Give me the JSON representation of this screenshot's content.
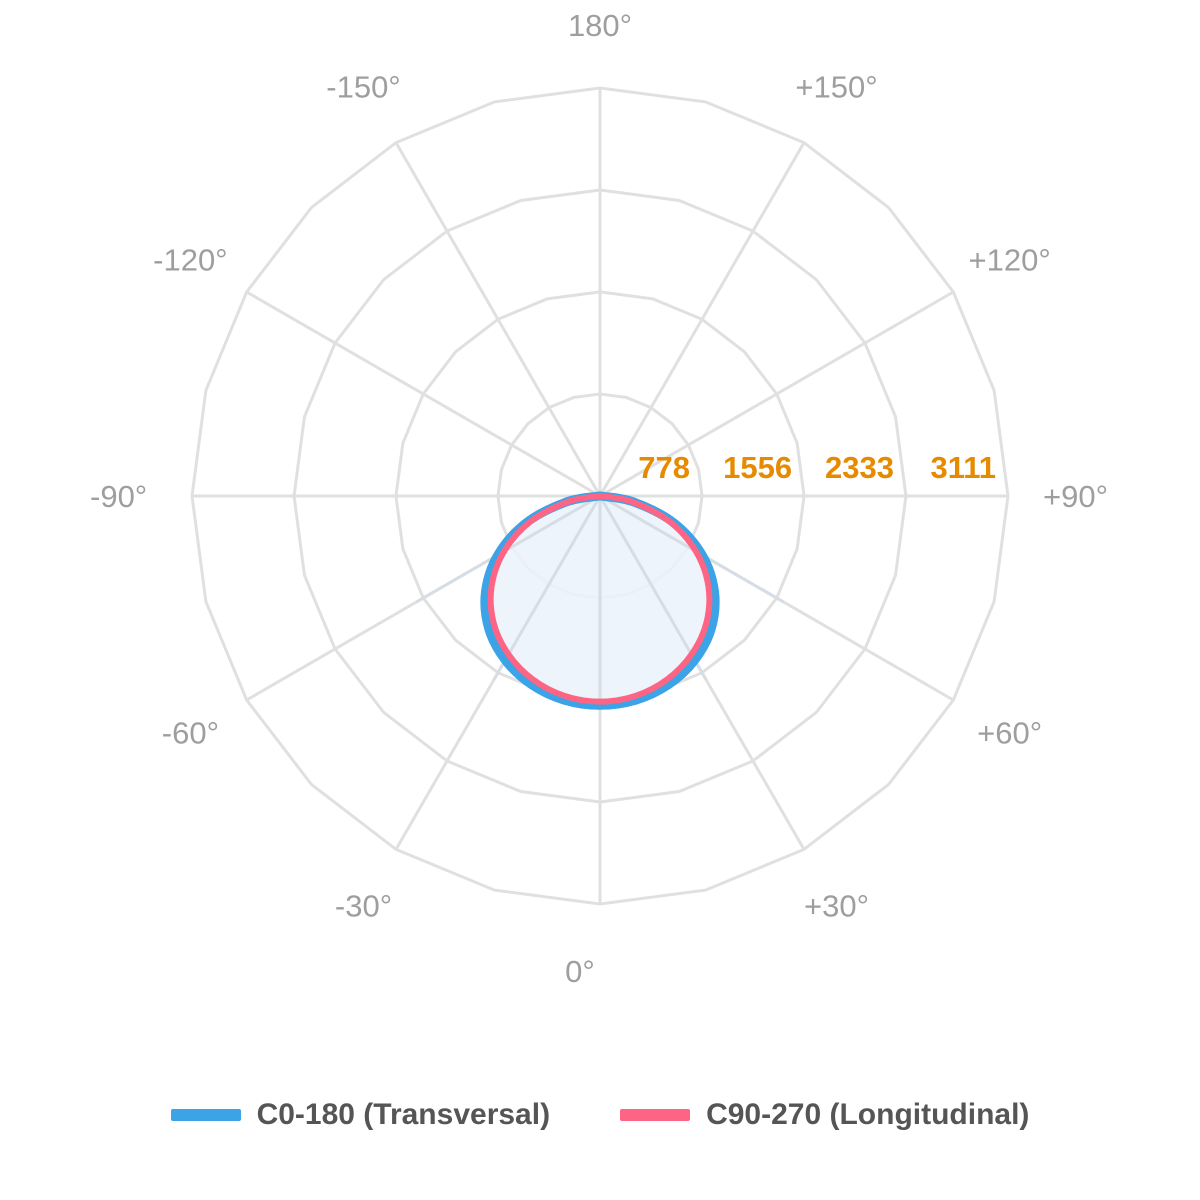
{
  "chart_data": {
    "type": "polar-line",
    "angle_labels": [
      "0°",
      "+30°",
      "+60°",
      "+90°",
      "+120°",
      "+150°",
      "180°",
      "-150°",
      "-120°",
      "-90°",
      "-60°",
      "-30°"
    ],
    "radial_ticks": [
      778,
      1556,
      2333,
      3111
    ],
    "radial_tick_labels": [
      "778",
      "1556",
      "2333",
      "3111"
    ],
    "r_max": 3111,
    "grid": true,
    "legend_position": "bottom",
    "angles_deg": [
      0,
      10,
      20,
      30,
      40,
      50,
      60,
      70,
      80,
      90
    ],
    "series": [
      {
        "name": "C0-180 (Transversal)",
        "color": "#3ba3e6",
        "values": [
          1596,
          1580,
          1530,
          1445,
          1320,
          1140,
          900,
          600,
          260,
          5
        ]
      },
      {
        "name": "C90-270 (Longitudinal)",
        "color": "#fe6584",
        "values": [
          1568,
          1548,
          1490,
          1395,
          1262,
          1080,
          845,
          560,
          240,
          5
        ]
      }
    ]
  },
  "colors": {
    "grid": "#e0e0e0",
    "fill": "#eaf2fb",
    "angle_text": "#9e9e9e",
    "radial_text": "#e68a00"
  }
}
